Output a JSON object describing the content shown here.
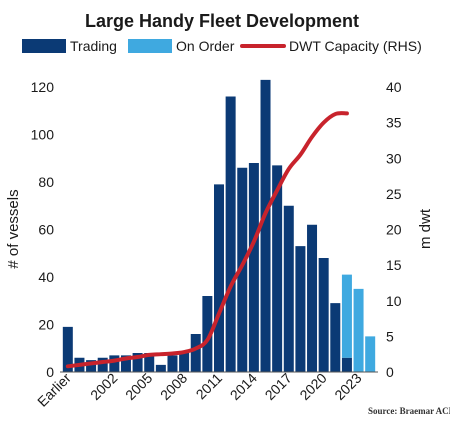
{
  "chart_data": {
    "type": "bar",
    "title": "Large Handy Fleet Development",
    "ylabel": "# of vessels",
    "y2label": "m dwt",
    "ylim": [
      0,
      120
    ],
    "y2lim": [
      0,
      40
    ],
    "yticks": [
      0,
      20,
      40,
      60,
      80,
      100,
      120
    ],
    "y2ticks": [
      0,
      5,
      10,
      15,
      20,
      25,
      30,
      35,
      40
    ],
    "categories": [
      "Earlier",
      "1999",
      "2000",
      "2001",
      "2002",
      "2003",
      "2004",
      "2005",
      "2006",
      "2007",
      "2008",
      "2009",
      "2010",
      "2011",
      "2012",
      "2013",
      "2014",
      "2015",
      "2016",
      "2017",
      "2018",
      "2019",
      "2020",
      "2021",
      "2022",
      "2023",
      "2024"
    ],
    "xtick_labels": [
      "Earlier",
      "2002",
      "2005",
      "2008",
      "2011",
      "2014",
      "2017",
      "2020",
      "2023"
    ],
    "series": [
      {
        "name": "Trading",
        "type": "bar",
        "axis": "left",
        "values": [
          19,
          6,
          5,
          6,
          7,
          7,
          8,
          8,
          3,
          7,
          8,
          16,
          32,
          79,
          116,
          86,
          88,
          123,
          87,
          70,
          53,
          62,
          48,
          29,
          6,
          0,
          0
        ]
      },
      {
        "name": "On Order",
        "type": "bar",
        "axis": "left",
        "values": [
          0,
          0,
          0,
          0,
          0,
          0,
          0,
          0,
          0,
          0,
          0,
          0,
          0,
          0,
          0,
          0,
          0,
          0,
          0,
          0,
          0,
          0,
          0,
          0,
          35,
          35,
          15
        ]
      },
      {
        "name": "DWT Capacity (RHS)",
        "type": "line",
        "axis": "right",
        "values": [
          0.8,
          1.0,
          1.2,
          1.4,
          1.6,
          1.9,
          2.1,
          2.4,
          2.5,
          2.6,
          2.8,
          3.3,
          4.5,
          8.2,
          12.0,
          15.0,
          18.3,
          22.3,
          25.5,
          28.5,
          30.5,
          33.0,
          35.0,
          36.2,
          36.3,
          null,
          null
        ]
      }
    ],
    "colors": {
      "trading": "#0b3a75",
      "on_order": "#3fa9e0",
      "dwt": "#c8232c"
    },
    "legend_position": "top",
    "grid": false,
    "source": "Source: Braemar ACM"
  }
}
